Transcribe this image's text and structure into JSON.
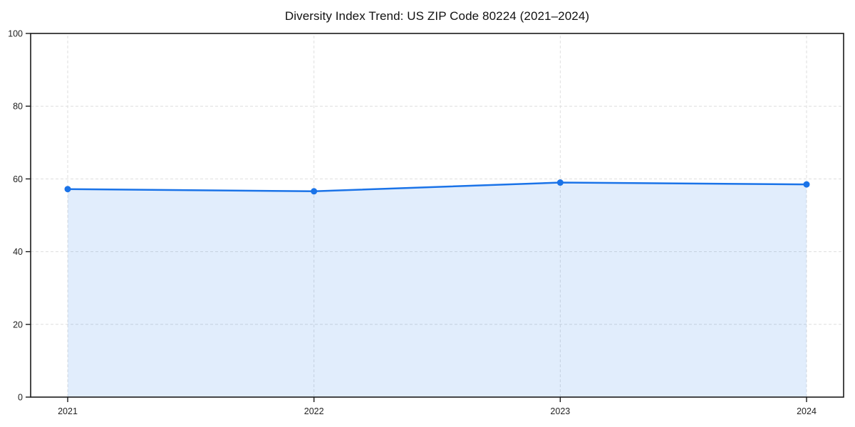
{
  "chart_data": {
    "type": "area",
    "title": "Diversity Index Trend: US ZIP Code 80224 (2021–2024)",
    "categories": [
      "2021",
      "2022",
      "2023",
      "2024"
    ],
    "series": [
      {
        "name": "Diversity Index",
        "values": [
          57.2,
          56.6,
          59.0,
          58.5
        ]
      }
    ],
    "xlabel": "",
    "ylabel": "",
    "ylim": [
      0,
      100
    ],
    "yticks": [
      0,
      20,
      40,
      60,
      80,
      100
    ],
    "grid": true,
    "grid_style": "dashed",
    "legend": false,
    "legend_position": "none",
    "colors": {
      "line": "#1a73e8",
      "marker": "#1a73e8",
      "fill": "rgba(26,115,232,0.13)",
      "grid": "#dedede",
      "axis": "#1a1a1a",
      "tick_label": "#222222",
      "title": "#111111",
      "background": "#ffffff"
    }
  }
}
